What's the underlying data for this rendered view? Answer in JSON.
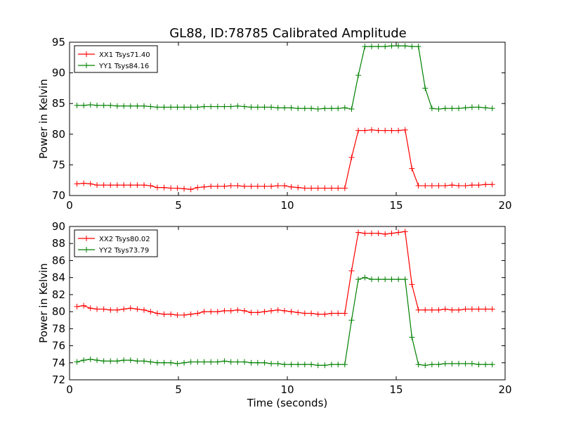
{
  "title": "GL88, ID:78785 Calibrated Amplitude",
  "chart_data": [
    {
      "type": "line",
      "title": "GL88, ID:78785 Calibrated Amplitude",
      "xlabel": "",
      "ylabel": "Power in Kelvin",
      "xlim": [
        0,
        20
      ],
      "ylim": [
        70,
        95
      ],
      "xticks": [
        0,
        5,
        10,
        15,
        20
      ],
      "yticks": [
        70,
        75,
        80,
        85,
        90,
        95
      ],
      "grid": false,
      "legend": "top-left",
      "x": [
        0.34,
        0.65,
        0.96,
        1.26,
        1.57,
        1.88,
        2.19,
        2.49,
        2.8,
        3.11,
        3.42,
        3.72,
        4.03,
        4.34,
        4.65,
        4.95,
        5.26,
        5.57,
        5.88,
        6.18,
        6.49,
        6.8,
        7.11,
        7.41,
        7.72,
        8.03,
        8.34,
        8.64,
        8.95,
        9.26,
        9.57,
        9.87,
        10.18,
        10.49,
        10.8,
        11.1,
        11.41,
        11.72,
        12.03,
        12.33,
        12.64,
        12.95,
        13.26,
        13.56,
        13.87,
        14.18,
        14.49,
        14.79,
        15.1,
        15.41,
        15.72,
        16.02,
        16.33,
        16.64,
        16.95,
        17.25,
        17.56,
        17.87,
        18.18,
        18.48,
        18.79,
        19.1,
        19.41
      ],
      "series": [
        {
          "name": "XX1 Tsys71.40",
          "color": "#ff0000",
          "values": [
            71.9,
            72.0,
            71.9,
            71.7,
            71.7,
            71.7,
            71.7,
            71.7,
            71.7,
            71.7,
            71.7,
            71.6,
            71.3,
            71.3,
            71.2,
            71.2,
            71.1,
            71.0,
            71.3,
            71.4,
            71.5,
            71.5,
            71.5,
            71.6,
            71.6,
            71.5,
            71.5,
            71.5,
            71.5,
            71.5,
            71.6,
            71.6,
            71.4,
            71.3,
            71.2,
            71.2,
            71.2,
            71.2,
            71.2,
            71.2,
            71.2,
            76.2,
            80.6,
            80.6,
            80.7,
            80.6,
            80.6,
            80.6,
            80.6,
            80.7,
            74.4,
            71.6,
            71.6,
            71.6,
            71.6,
            71.6,
            71.7,
            71.6,
            71.6,
            71.7,
            71.7,
            71.8,
            71.8
          ]
        },
        {
          "name": "YY1 Tsys84.16",
          "color": "#008000",
          "values": [
            84.7,
            84.7,
            84.8,
            84.7,
            84.7,
            84.7,
            84.6,
            84.6,
            84.6,
            84.6,
            84.6,
            84.5,
            84.4,
            84.4,
            84.4,
            84.4,
            84.4,
            84.4,
            84.4,
            84.5,
            84.5,
            84.5,
            84.5,
            84.5,
            84.6,
            84.5,
            84.4,
            84.4,
            84.4,
            84.4,
            84.3,
            84.3,
            84.3,
            84.2,
            84.2,
            84.2,
            84.1,
            84.2,
            84.2,
            84.2,
            84.3,
            84.1,
            89.6,
            94.3,
            94.3,
            94.3,
            94.3,
            94.4,
            94.4,
            94.4,
            94.3,
            94.3,
            87.5,
            84.2,
            84.1,
            84.2,
            84.2,
            84.2,
            84.3,
            84.4,
            84.4,
            84.3,
            84.2
          ]
        }
      ]
    },
    {
      "type": "line",
      "title": "",
      "xlabel": "Time (seconds)",
      "ylabel": "Power in Kelvin",
      "xlim": [
        0,
        20
      ],
      "ylim": [
        72,
        90
      ],
      "xticks": [
        0,
        5,
        10,
        15,
        20
      ],
      "yticks": [
        72,
        74,
        76,
        78,
        80,
        82,
        84,
        86,
        88,
        90
      ],
      "grid": false,
      "legend": "top-left",
      "x": [
        0.34,
        0.65,
        0.96,
        1.26,
        1.57,
        1.88,
        2.19,
        2.49,
        2.8,
        3.11,
        3.42,
        3.72,
        4.03,
        4.34,
        4.65,
        4.95,
        5.26,
        5.57,
        5.88,
        6.18,
        6.49,
        6.8,
        7.11,
        7.41,
        7.72,
        8.03,
        8.34,
        8.64,
        8.95,
        9.26,
        9.57,
        9.87,
        10.18,
        10.49,
        10.8,
        11.1,
        11.41,
        11.72,
        12.03,
        12.33,
        12.64,
        12.95,
        13.26,
        13.56,
        13.87,
        14.18,
        14.49,
        14.79,
        15.1,
        15.41,
        15.72,
        16.02,
        16.33,
        16.64,
        16.95,
        17.25,
        17.56,
        17.87,
        18.18,
        18.48,
        18.79,
        19.1,
        19.41
      ],
      "series": [
        {
          "name": "XX2 Tsys80.02",
          "color": "#ff0000",
          "values": [
            80.6,
            80.7,
            80.4,
            80.3,
            80.3,
            80.2,
            80.2,
            80.3,
            80.4,
            80.3,
            80.2,
            80.0,
            79.8,
            79.7,
            79.7,
            79.6,
            79.6,
            79.7,
            79.8,
            80.0,
            80.0,
            80.0,
            80.1,
            80.1,
            80.2,
            80.1,
            79.9,
            79.9,
            80.0,
            80.1,
            80.2,
            80.1,
            80.0,
            79.9,
            79.8,
            79.8,
            79.7,
            79.7,
            79.8,
            79.8,
            79.8,
            84.8,
            89.3,
            89.2,
            89.2,
            89.2,
            89.1,
            89.2,
            89.3,
            89.4,
            83.2,
            80.2,
            80.2,
            80.2,
            80.2,
            80.3,
            80.2,
            80.2,
            80.3,
            80.3,
            80.3,
            80.3,
            80.3
          ]
        },
        {
          "name": "YY2 Tsys73.79",
          "color": "#008000",
          "values": [
            74.1,
            74.3,
            74.4,
            74.3,
            74.2,
            74.2,
            74.2,
            74.3,
            74.3,
            74.2,
            74.2,
            74.1,
            74.0,
            74.0,
            74.0,
            73.9,
            74.0,
            74.1,
            74.1,
            74.1,
            74.1,
            74.1,
            74.2,
            74.1,
            74.1,
            74.1,
            74.0,
            74.0,
            74.0,
            73.9,
            73.9,
            73.8,
            73.8,
            73.8,
            73.8,
            73.8,
            73.7,
            73.7,
            73.8,
            73.8,
            73.8,
            79.0,
            83.8,
            84.0,
            83.8,
            83.8,
            83.8,
            83.8,
            83.8,
            83.8,
            77.0,
            73.8,
            73.7,
            73.8,
            73.8,
            73.9,
            73.9,
            73.9,
            73.9,
            73.9,
            73.8,
            73.8,
            73.8
          ]
        }
      ]
    }
  ]
}
